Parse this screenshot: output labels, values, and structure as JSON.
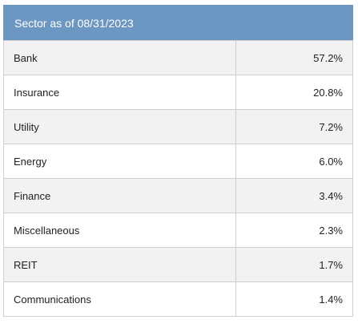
{
  "header": {
    "title": "Sector as of 08/31/2023"
  },
  "rows": [
    {
      "sector": "Bank",
      "weight": "57.2%"
    },
    {
      "sector": "Insurance",
      "weight": "20.8%"
    },
    {
      "sector": "Utility",
      "weight": "7.2%"
    },
    {
      "sector": "Energy",
      "weight": "6.0%"
    },
    {
      "sector": "Finance",
      "weight": "3.4%"
    },
    {
      "sector": "Miscellaneous",
      "weight": "2.3%"
    },
    {
      "sector": "REIT",
      "weight": "1.7%"
    },
    {
      "sector": "Communications",
      "weight": "1.4%"
    }
  ],
  "colors": {
    "header_bg": "#6b97c2",
    "row_shade": "#f2f2f2",
    "row_plain": "#ffffff",
    "border": "#cfcfcf"
  }
}
